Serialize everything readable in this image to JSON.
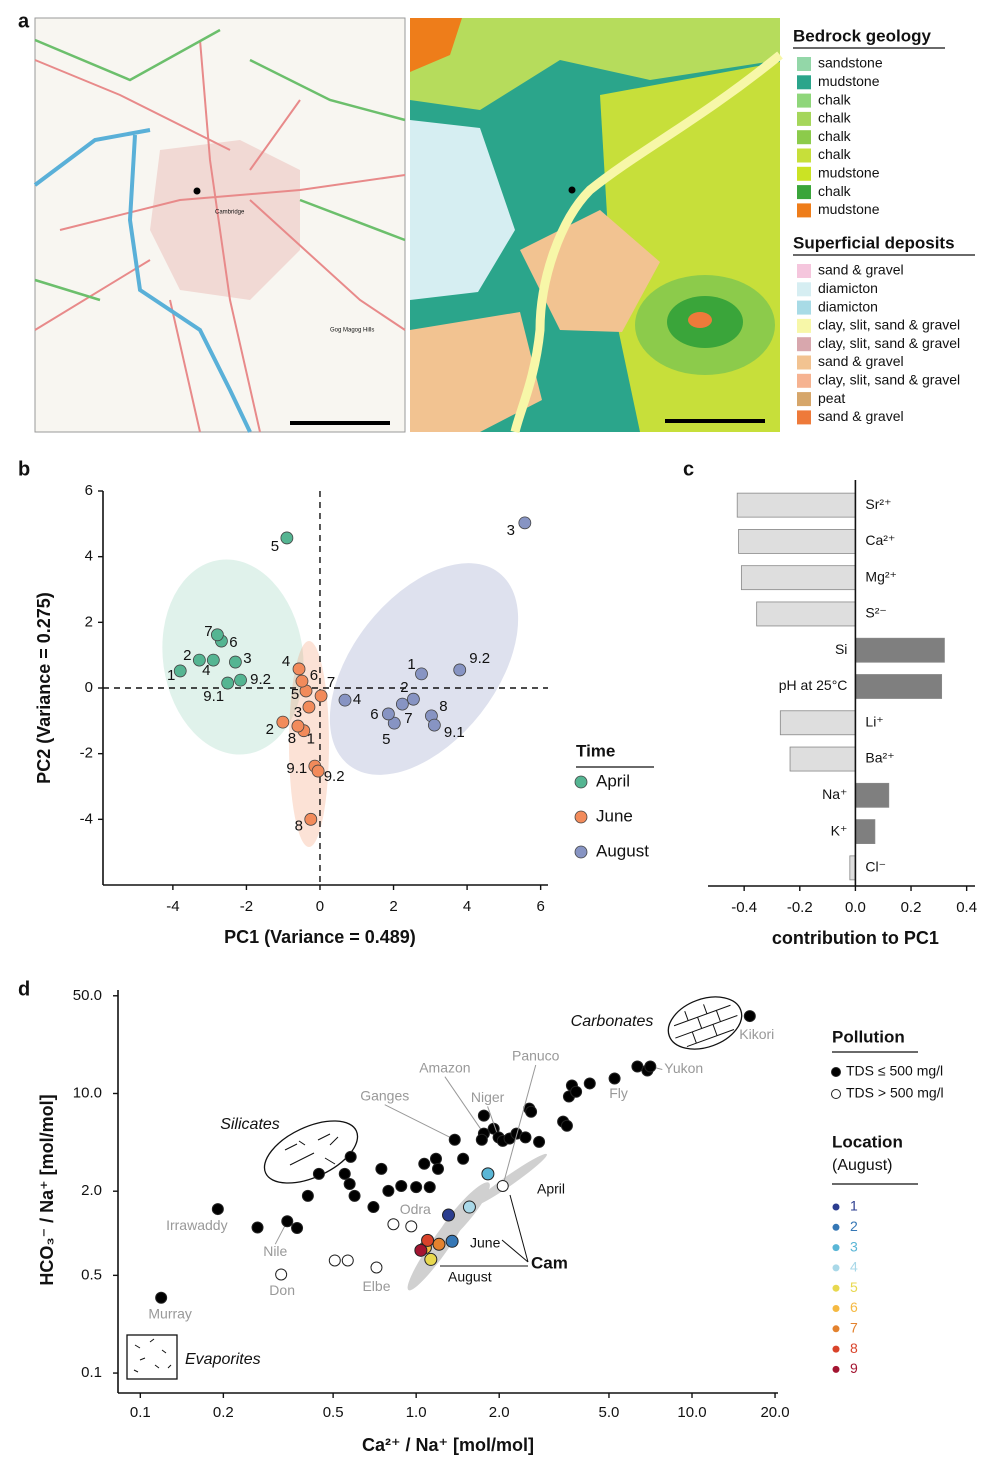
{
  "panel_labels": [
    "a",
    "b",
    "c",
    "d"
  ],
  "map": {
    "labels": [
      "Cambridge",
      "Gog Magog Hills"
    ]
  },
  "map_legend": {
    "bedrock": {
      "title": "Bedrock geology",
      "items": [
        {
          "label": "sandstone",
          "color": "#93d7a8"
        },
        {
          "label": "mudstone",
          "color": "#2ba58b"
        },
        {
          "label": "chalk",
          "color": "#8fd67a"
        },
        {
          "label": "chalk",
          "color": "#a5d65a"
        },
        {
          "label": "chalk",
          "color": "#8ccb4b"
        },
        {
          "label": "chalk",
          "color": "#c7df3a"
        },
        {
          "label": "mudstone",
          "color": "#cbe324"
        },
        {
          "label": "chalk",
          "color": "#3aa53a"
        },
        {
          "label": "mudstone",
          "color": "#ee7d1a"
        }
      ]
    },
    "superficial": {
      "title": "Superficial deposits",
      "items": [
        {
          "label": "sand & gravel",
          "color": "#f5c6dd"
        },
        {
          "label": "diamicton",
          "color": "#d6eef2"
        },
        {
          "label": "diamicton",
          "color": "#a8dbe6"
        },
        {
          "label": "clay, slit, sand & gravel",
          "color": "#f7f7a8"
        },
        {
          "label": "clay, slit, sand & gravel",
          "color": "#d8a7ad"
        },
        {
          "label": "sand & gravel",
          "color": "#f2c391"
        },
        {
          "label": "clay, slit, sand & gravel",
          "color": "#f6b391"
        },
        {
          "label": "peat",
          "color": "#d6a66a"
        },
        {
          "label": "sand & gravel",
          "color": "#ee7a3a"
        }
      ]
    }
  },
  "chart_data": [
    {
      "type": "scatter",
      "xlabel": "PC1 (Variance = 0.489)",
      "ylabel": "PC2 (Variance = 0.275)",
      "xlim": [
        -5.9,
        6.2
      ],
      "ylim": [
        -6,
        6
      ],
      "xticks": [
        -4,
        -2,
        0,
        2,
        4,
        6
      ],
      "yticks": [
        -4,
        -2,
        0,
        2,
        4,
        6
      ],
      "zero_lines": true,
      "legend_title": "Time",
      "series": [
        {
          "name": "April",
          "color": "#55b592",
          "labels": [
            "1",
            "2",
            "3",
            "4",
            "5",
            "6",
            "7",
            "9.1",
            "9.2"
          ],
          "x": [
            -3.8,
            -3.28,
            -2.3,
            -2.9,
            -0.9,
            -2.68,
            -2.79,
            -2.51,
            -2.16
          ],
          "values": [
            0.52,
            0.85,
            0.79,
            0.85,
            4.57,
            1.43,
            1.62,
            0.15,
            0.24
          ]
        },
        {
          "name": "June",
          "color": "#f28b5b",
          "labels": [
            "1",
            "2",
            "3",
            "4",
            "5",
            "6",
            "7",
            "8",
            "9.1",
            "9.2",
            "8"
          ],
          "x": [
            -0.44,
            -1.01,
            -0.3,
            -0.57,
            -0.38,
            -0.49,
            0.03,
            -0.6,
            -0.14,
            -0.05,
            -0.25
          ],
          "values": [
            -1.3,
            -1.04,
            -0.58,
            0.58,
            -0.09,
            0.21,
            -0.24,
            -1.16,
            -2.38,
            -2.53,
            -4.0
          ]
        },
        {
          "name": "August",
          "color": "#8794c3",
          "labels": [
            "1",
            "2",
            "3",
            "4",
            "5",
            "6",
            "7",
            "8",
            "9.1",
            "9.2"
          ],
          "x": [
            2.76,
            2.54,
            5.57,
            0.68,
            2.02,
            1.86,
            2.24,
            3.03,
            3.11,
            3.8
          ],
          "values": [
            0.43,
            -0.34,
            5.03,
            -0.37,
            -1.07,
            -0.79,
            -0.49,
            -0.85,
            -1.13,
            0.55
          ]
        }
      ]
    },
    {
      "type": "barh",
      "xlabel": "contribution to PC1",
      "categories": [
        "Sr²⁺",
        "Ca²⁺",
        "Mg²⁺",
        "S²⁻",
        "Si",
        "pH at 25°C",
        "Li⁺",
        "Ba²⁺",
        "Na⁺",
        "K⁺",
        "Cl⁻"
      ],
      "values": [
        -0.425,
        -0.42,
        -0.41,
        -0.355,
        0.32,
        0.31,
        -0.27,
        -0.235,
        0.12,
        0.07,
        -0.02
      ],
      "colors": [
        "#dedede",
        "#dedede",
        "#dedede",
        "#dedede",
        "#7f7f7f",
        "#7f7f7f",
        "#dedede",
        "#dedede",
        "#7f7f7f",
        "#7f7f7f",
        "#dedede"
      ],
      "xlim": [
        -0.53,
        0.43
      ],
      "xticks": [
        -0.4,
        -0.2,
        {
          "value": 0,
          "label": "0.0"
        },
        0.2,
        0.4
      ]
    },
    {
      "type": "scatter",
      "log_x": true,
      "log_y": true,
      "xlabel": "Ca²⁺ / Na⁺ [mol/mol]",
      "ylabel": "HCO₃⁻ / Na⁺ [mol/mol]",
      "xlim": [
        0.083,
        20.5
      ],
      "ylim": [
        0.072,
        55
      ],
      "xticks": [
        0.1,
        0.2,
        0.5,
        {
          "value": 1,
          "label": "1.0"
        },
        {
          "value": 2,
          "label": "2.0"
        },
        {
          "value": 5,
          "label": "5.0"
        },
        {
          "value": 10,
          "label": "10.0"
        },
        {
          "value": 20,
          "label": "20.0"
        }
      ],
      "yticks": [
        0.1,
        0.5,
        {
          "value": 2,
          "label": "2.0"
        },
        {
          "value": 10,
          "label": "10.0"
        },
        {
          "value": 50,
          "label": "50.0"
        }
      ],
      "legend_title": "Pollution",
      "series": [
        {
          "name": "TDS ≤ 500 mg/l",
          "color": "#000000",
          "x": [
            0.119,
            0.191,
            0.266,
            0.341,
            0.37,
            0.405,
            0.444,
            0.551,
            0.579,
            0.574,
            0.598,
            0.7,
            0.748,
            0.793,
            0.883,
            1.0,
            1.12,
            1.07,
            1.18,
            1.2,
            1.38,
            1.48,
            1.76,
            1.76,
            1.73,
            1.91,
            1.99,
            2.06,
            2.18,
            2.57,
            2.61,
            2.31,
            2.49,
            2.79,
            3.41,
            3.52,
            3.58,
            3.67,
            3.8,
            4.26,
            5.24,
            6.34,
            6.89,
            7.06,
            16.2
          ],
          "values": [
            0.346,
            1.49,
            1.1,
            1.22,
            1.09,
            1.85,
            2.66,
            2.66,
            3.52,
            2.25,
            1.85,
            1.54,
            2.89,
            2.01,
            2.18,
            2.14,
            2.14,
            3.14,
            3.41,
            2.89,
            4.67,
            3.41,
            6.95,
            5.16,
            4.67,
            5.6,
            4.85,
            4.58,
            4.76,
            7.8,
            7.4,
            5.16,
            4.85,
            4.51,
            6.29,
            5.88,
            9.51,
            11.4,
            10.3,
            11.8,
            12.8,
            15.6,
            14.6,
            15.6,
            35.8
          ],
          "labels": [
            "Murray",
            "Irrawaddy",
            null,
            "Nile",
            null,
            null,
            null,
            null,
            null,
            null,
            null,
            null,
            null,
            null,
            null,
            null,
            null,
            null,
            null,
            null,
            "Ganges",
            null,
            null,
            "Amazon",
            null,
            null,
            "Niger",
            null,
            null,
            null,
            null,
            null,
            null,
            null,
            null,
            null,
            null,
            null,
            null,
            null,
            "Fly",
            null,
            null,
            "Yukon",
            "Kikori"
          ]
        },
        {
          "name": "TDS > 500 mg/l",
          "color": "#ffffff",
          "x": [
            0.324,
            0.507,
            0.565,
            0.718,
            0.827,
            0.96,
            2.06
          ],
          "values": [
            0.507,
            0.639,
            0.639,
            0.569,
            1.16,
            1.12,
            2.18
          ],
          "labels": [
            "Don",
            null,
            null,
            "Elbe",
            null,
            "Odra",
            "Panuco"
          ]
        }
      ],
      "location_legend": {
        "title": "Location",
        "subtitle": "(August)"
      },
      "location_series": [
        {
          "name": "1",
          "color": "#2b3d8f",
          "x": [
            1.31
          ],
          "values": [
            1.35
          ]
        },
        {
          "name": "2",
          "color": "#3577b5",
          "x": [
            1.35
          ],
          "values": [
            0.876
          ]
        },
        {
          "name": "3",
          "color": "#5ab6d6",
          "x": [
            1.82
          ],
          "values": [
            2.66
          ]
        },
        {
          "name": "4",
          "color": "#a9d8e8",
          "x": [
            1.56
          ],
          "values": [
            1.54
          ]
        },
        {
          "name": "5",
          "color": "#e8d84f",
          "x": [
            1.13
          ],
          "values": [
            0.65
          ]
        },
        {
          "name": "6",
          "color": "#f5b942",
          "x": [
            1.08
          ],
          "values": [
            0.79
          ]
        },
        {
          "name": "7",
          "color": "#e3822e",
          "x": [
            1.21
          ],
          "values": [
            0.834
          ]
        },
        {
          "name": "8",
          "color": "#d9432a",
          "x": [
            1.1
          ],
          "values": [
            0.89
          ]
        },
        {
          "name": "9",
          "color": "#a31531",
          "x": [
            1.04
          ],
          "values": [
            0.755
          ]
        }
      ],
      "annotations": [
        "Carbonates",
        "Silicates",
        "Evaporites",
        "April",
        "June",
        "August",
        "Cam"
      ]
    }
  ]
}
